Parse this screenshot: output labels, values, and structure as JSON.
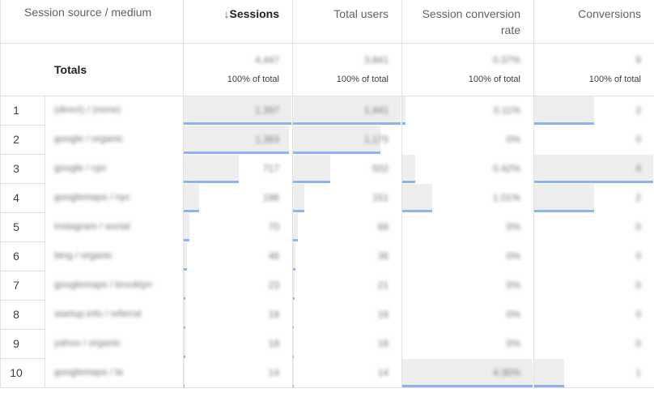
{
  "header": {
    "columns": [
      "Session source / medium",
      "Sessions",
      "Total users",
      "Session conversion rate",
      "Conversions"
    ],
    "sort_arrow": "↓"
  },
  "totals": {
    "label": "Totals",
    "cells": [
      {
        "value": "4,447",
        "share": "100% of total"
      },
      {
        "value": "3,841",
        "share": "100% of total"
      },
      {
        "value": "0.37%",
        "share": "100% of total"
      },
      {
        "value": "9",
        "share": "100% of total"
      }
    ]
  },
  "rows": [
    {
      "index": 1,
      "source": "(direct) / (none)",
      "cells": [
        {
          "value": 1397,
          "label": "1,397"
        },
        {
          "value": 1441,
          "label": "1,441"
        },
        {
          "value": 0.11,
          "label": "0.11%"
        },
        {
          "value": 2,
          "label": "2"
        }
      ]
    },
    {
      "index": 2,
      "source": "google / organic",
      "cells": [
        {
          "value": 1363,
          "label": "1,363"
        },
        {
          "value": 1175,
          "label": "1,175"
        },
        {
          "value": 0,
          "label": "0%"
        },
        {
          "value": 0,
          "label": "0"
        }
      ]
    },
    {
      "index": 3,
      "source": "google / cpc",
      "cells": [
        {
          "value": 717,
          "label": "717"
        },
        {
          "value": 502,
          "label": "502"
        },
        {
          "value": 0.42,
          "label": "0.42%"
        },
        {
          "value": 4,
          "label": "4"
        }
      ]
    },
    {
      "index": 4,
      "source": "googlemaps / nyc",
      "cells": [
        {
          "value": 196,
          "label": "196"
        },
        {
          "value": 151,
          "label": "151"
        },
        {
          "value": 1.01,
          "label": "1.01%"
        },
        {
          "value": 2,
          "label": "2"
        }
      ]
    },
    {
      "index": 5,
      "source": "instagram / social",
      "cells": [
        {
          "value": 70,
          "label": "70"
        },
        {
          "value": 66,
          "label": "66"
        },
        {
          "value": 0,
          "label": "0%"
        },
        {
          "value": 0,
          "label": "0"
        }
      ]
    },
    {
      "index": 6,
      "source": "bing / organic",
      "cells": [
        {
          "value": 46,
          "label": "46"
        },
        {
          "value": 36,
          "label": "36"
        },
        {
          "value": 0,
          "label": "0%"
        },
        {
          "value": 0,
          "label": "0"
        }
      ]
    },
    {
      "index": 7,
      "source": "googlemaps / brooklyn",
      "cells": [
        {
          "value": 23,
          "label": "23"
        },
        {
          "value": 21,
          "label": "21"
        },
        {
          "value": 0,
          "label": "0%"
        },
        {
          "value": 0,
          "label": "0"
        }
      ]
    },
    {
      "index": 8,
      "source": "startup.info / referral",
      "cells": [
        {
          "value": 18,
          "label": "18"
        },
        {
          "value": 16,
          "label": "16"
        },
        {
          "value": 0,
          "label": "0%"
        },
        {
          "value": 0,
          "label": "0"
        }
      ]
    },
    {
      "index": 9,
      "source": "yahoo / organic",
      "cells": [
        {
          "value": 18,
          "label": "18"
        },
        {
          "value": 16,
          "label": "16"
        },
        {
          "value": 0,
          "label": "0%"
        },
        {
          "value": 0,
          "label": "0"
        }
      ]
    },
    {
      "index": 10,
      "source": "googlemaps / la",
      "cells": [
        {
          "value": 14,
          "label": "14"
        },
        {
          "value": 14,
          "label": "14"
        },
        {
          "value": 4.35,
          "label": "4.35%"
        },
        {
          "value": 1,
          "label": "1"
        }
      ]
    }
  ]
}
